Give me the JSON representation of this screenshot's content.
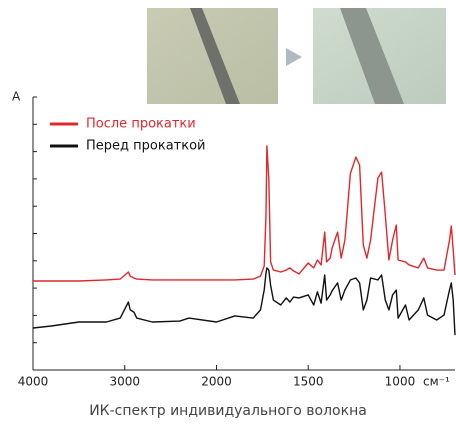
{
  "chart_data": {
    "type": "line",
    "title": "ИК-спектр индивидуального волокна",
    "ylabel": "A",
    "xlabel": "см⁻¹",
    "x": [
      4000,
      3800,
      3500,
      3200,
      3050,
      2960,
      2940,
      2900,
      2870,
      2700,
      2400,
      2300,
      2000,
      1900,
      1800,
      1760,
      1740,
      1730,
      1725,
      1715,
      1705,
      1690,
      1650,
      1620,
      1600,
      1580,
      1550,
      1500,
      1470,
      1450,
      1430,
      1410,
      1400,
      1380,
      1370,
      1340,
      1320,
      1300,
      1270,
      1240,
      1220,
      1200,
      1180,
      1160,
      1120,
      1100,
      1080,
      1060,
      1040,
      1020,
      1010,
      970,
      950,
      900,
      870,
      850,
      800,
      760,
      730,
      720,
      710,
      700
    ],
    "series": [
      {
        "name": "После прокатки",
        "color": "#e0282c",
        "values": [
          32.6,
          32.6,
          32.6,
          33.0,
          33.3,
          35.9,
          34.4,
          33.7,
          33.3,
          33.0,
          33.0,
          33.0,
          33.0,
          33.0,
          33.3,
          34.4,
          38.1,
          56.8,
          82.1,
          70.0,
          39.6,
          36.6,
          35.9,
          36.6,
          37.4,
          36.3,
          35.2,
          39.2,
          37.4,
          40.3,
          38.5,
          50.5,
          39.6,
          41.0,
          44.7,
          50.5,
          41.0,
          47.6,
          72.0,
          78.0,
          75.1,
          45.8,
          41.0,
          47.6,
          70.3,
          72.5,
          56.8,
          40.3,
          47.6,
          53.1,
          40.3,
          39.6,
          38.5,
          37.4,
          41.0,
          37.4,
          36.6,
          36.6,
          47.6,
          52.7,
          44.0,
          34.8
        ]
      },
      {
        "name": "Перед прокаткой",
        "color": "#111111",
        "values": [
          15.4,
          16.1,
          17.6,
          17.6,
          19.0,
          24.9,
          22.0,
          21.2,
          19.0,
          17.6,
          17.9,
          19.0,
          17.6,
          19.8,
          19.0,
          22.0,
          29.3,
          35.5,
          37.4,
          36.6,
          31.1,
          25.6,
          23.8,
          26.4,
          24.9,
          26.7,
          26.4,
          27.5,
          23.8,
          28.6,
          24.5,
          34.8,
          25.6,
          27.5,
          29.0,
          31.9,
          25.6,
          29.3,
          33.0,
          33.7,
          31.9,
          22.0,
          25.6,
          33.7,
          33.0,
          34.8,
          25.6,
          22.0,
          27.5,
          29.3,
          19.0,
          23.8,
          18.3,
          22.0,
          26.4,
          20.1,
          18.3,
          20.1,
          29.3,
          31.9,
          25.6,
          12.8
        ]
      }
    ],
    "xlim": [
      4000,
      700
    ],
    "xticks": [
      4000,
      3000,
      2000,
      1500,
      1000
    ],
    "xscale": "split",
    "xbreak": 2000,
    "ylim": [
      0,
      100
    ],
    "yticks": [
      0,
      10,
      20,
      30,
      40,
      50,
      60,
      70,
      80,
      90,
      100
    ],
    "legend": "upper-left"
  }
}
